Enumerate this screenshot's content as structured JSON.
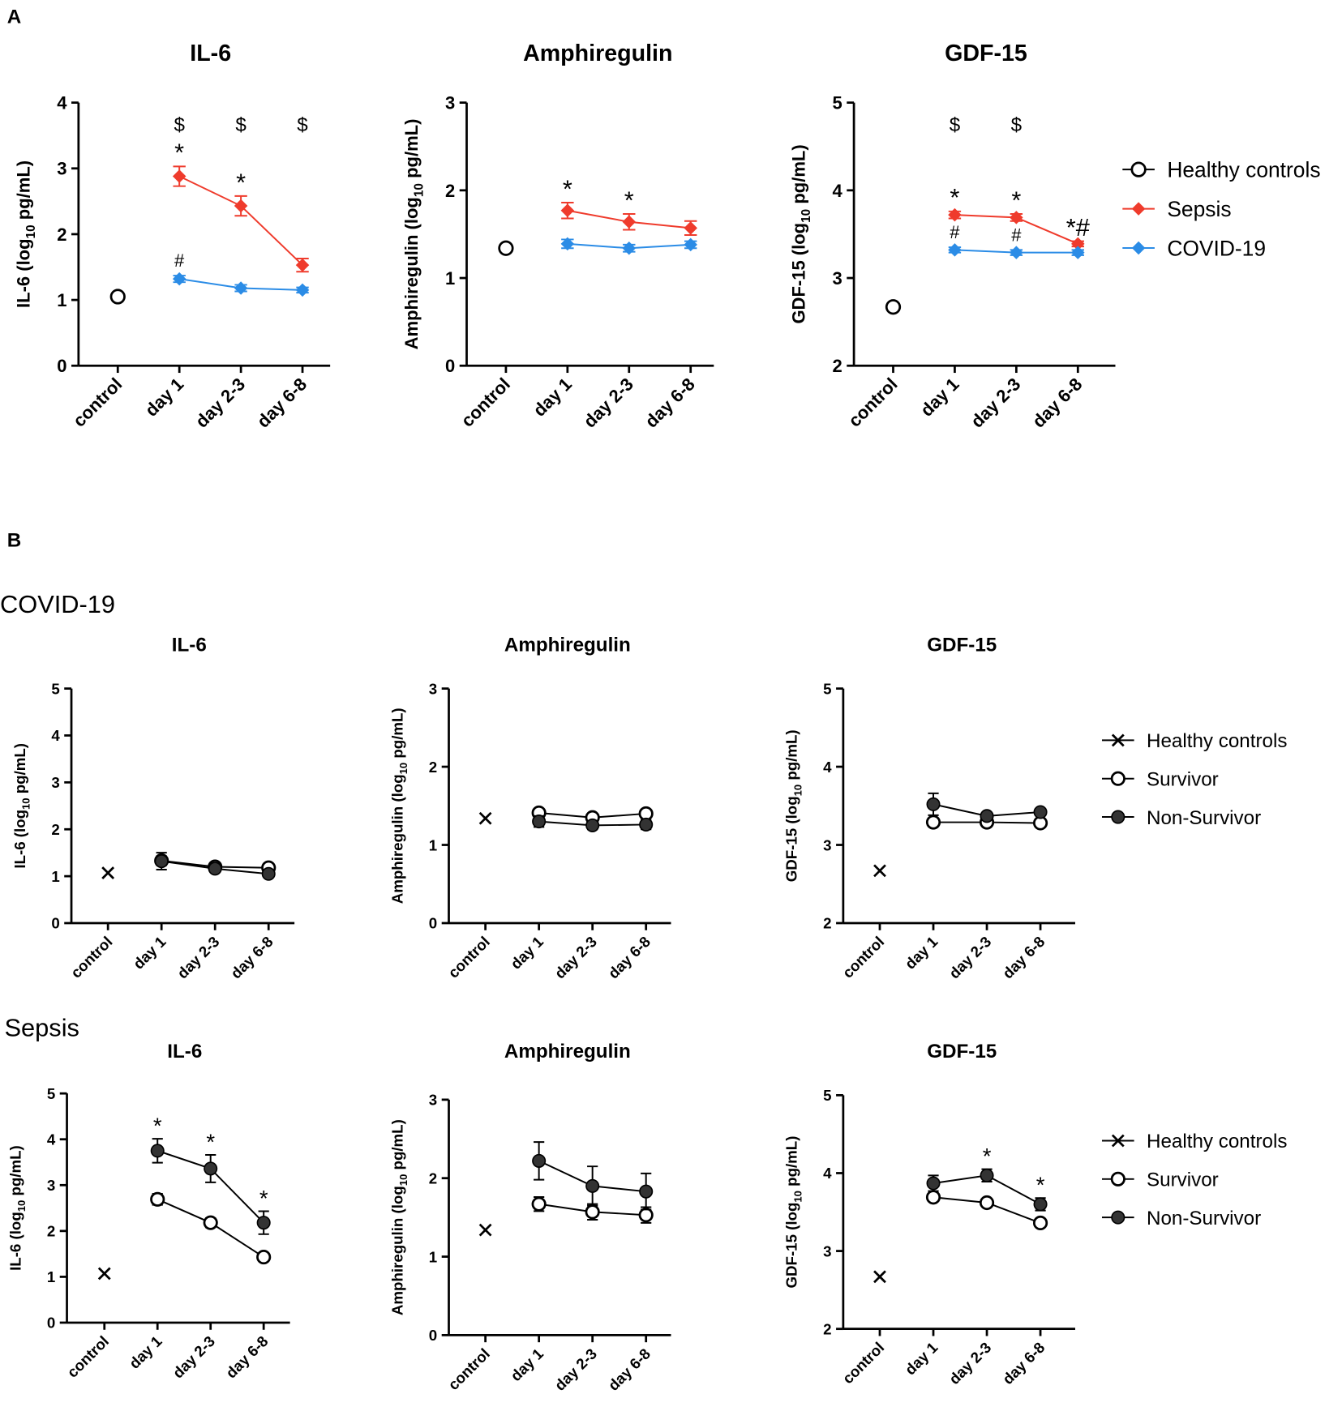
{
  "figure": {
    "panel_a": "A",
    "panel_b": "B",
    "row_1": "COVID-19",
    "row_2": "Sepsis"
  },
  "chart_data": [
    {
      "type": "line",
      "title": "IL-6",
      "ylabel": {
        "text": "IL-6 (log",
        "sub": "10",
        "unit": " pg/mL)"
      },
      "categories": [
        "control",
        "day 1",
        "day 2-3",
        "day 6-8"
      ],
      "ylim": [
        0,
        4
      ],
      "yticks": [
        0,
        1,
        2,
        3,
        4
      ],
      "top_labels": [
        null,
        "$",
        "$",
        "$"
      ],
      "series": [
        {
          "name": "Healthy controls",
          "color": "#000000",
          "marker": "circle-open",
          "values": [
            1.05,
            null,
            null,
            null
          ],
          "errors": [
            null,
            null,
            null,
            null
          ],
          "labels": [
            null,
            null,
            null,
            null
          ]
        },
        {
          "name": "Sepsis",
          "color": "#ef3b2c",
          "marker": "diamond",
          "values": [
            null,
            2.88,
            2.43,
            1.53
          ],
          "errors": [
            null,
            0.15,
            0.15,
            0.1
          ],
          "labels": [
            null,
            "*",
            "*",
            null
          ]
        },
        {
          "name": "COVID-19",
          "color": "#2b8ce6",
          "marker": "diamond",
          "values": [
            null,
            1.32,
            1.18,
            1.15
          ],
          "errors": [
            null,
            0.05,
            0.05,
            0.04
          ],
          "labels": [
            null,
            "#",
            null,
            null
          ]
        }
      ]
    },
    {
      "type": "line",
      "title": "Amphiregulin",
      "ylabel": {
        "text": "Amphiregulin (log",
        "sub": "10",
        "unit": " pg/mL)"
      },
      "categories": [
        "control",
        "day 1",
        "day 2-3",
        "day 6-8"
      ],
      "ylim": [
        0,
        3
      ],
      "yticks": [
        0,
        1,
        2,
        3
      ],
      "series": [
        {
          "name": "Healthy controls",
          "color": "#000000",
          "marker": "circle-open",
          "values": [
            1.34,
            null,
            null,
            null
          ],
          "errors": [
            null,
            null,
            null,
            null
          ],
          "labels": [
            null,
            null,
            null,
            null
          ]
        },
        {
          "name": "Sepsis",
          "color": "#ef3b2c",
          "marker": "diamond",
          "values": [
            null,
            1.77,
            1.64,
            1.57
          ],
          "errors": [
            null,
            0.09,
            0.09,
            0.08
          ],
          "labels": [
            null,
            "*",
            "*",
            null
          ]
        },
        {
          "name": "COVID-19",
          "color": "#2b8ce6",
          "marker": "diamond",
          "values": [
            null,
            1.39,
            1.34,
            1.38
          ],
          "errors": [
            null,
            0.05,
            0.04,
            0.04
          ],
          "labels": [
            null,
            null,
            null,
            null
          ]
        }
      ]
    },
    {
      "type": "line",
      "title": "GDF-15",
      "ylabel": {
        "text": "GDF-15 (log",
        "sub": "10",
        "unit": " pg/mL)"
      },
      "categories": [
        "control",
        "day 1",
        "day 2-3",
        "day 6-8"
      ],
      "ylim": [
        2,
        5
      ],
      "yticks": [
        2,
        3,
        4,
        5
      ],
      "legend": "right",
      "top_labels": [
        null,
        "$",
        "$",
        null
      ],
      "series": [
        {
          "name": "Healthy controls",
          "color": "#000000",
          "marker": "circle-open",
          "values": [
            2.67,
            null,
            null,
            null
          ],
          "errors": [
            null,
            null,
            null,
            null
          ],
          "labels": [
            null,
            null,
            null,
            null
          ]
        },
        {
          "name": "Sepsis",
          "color": "#ef3b2c",
          "marker": "diamond",
          "values": [
            null,
            3.72,
            3.69,
            3.39
          ],
          "errors": [
            null,
            0.04,
            0.04,
            0.03
          ],
          "labels": [
            null,
            "*",
            "*",
            "*#"
          ]
        },
        {
          "name": "COVID-19",
          "color": "#2b8ce6",
          "marker": "diamond",
          "values": [
            null,
            3.32,
            3.29,
            3.29
          ],
          "errors": [
            null,
            0.03,
            0.03,
            0.03
          ],
          "labels": [
            null,
            "#",
            "#",
            null
          ]
        }
      ]
    },
    {
      "type": "line",
      "title": "IL-6",
      "ylabel": {
        "text": "IL-6 (log",
        "sub": "10",
        "unit": " pg/mL)"
      },
      "categories": [
        "control",
        "day 1",
        "day 2-3",
        "day 6-8"
      ],
      "ylim": [
        0,
        5
      ],
      "yticks": [
        0,
        1,
        2,
        3,
        4,
        5
      ],
      "series": [
        {
          "name": "Healthy controls",
          "color": "#000000",
          "marker": "x",
          "values": [
            1.07,
            null,
            null,
            null
          ],
          "errors": [
            null,
            null,
            null,
            null
          ],
          "labels": [
            null,
            null,
            null,
            null
          ]
        },
        {
          "name": "Survivor",
          "color": "#000000",
          "marker": "circle-open",
          "values": [
            null,
            1.33,
            1.2,
            1.18
          ],
          "errors": [
            null,
            0.1,
            0.04,
            0.04
          ],
          "labels": [
            null,
            null,
            null,
            null
          ]
        },
        {
          "name": "Non-Survivor",
          "color": "#000000",
          "marker": "circle-filled",
          "values": [
            null,
            1.32,
            1.16,
            1.05
          ],
          "errors": [
            null,
            0.18,
            0.05,
            0.03
          ],
          "labels": [
            null,
            null,
            null,
            null
          ]
        }
      ]
    },
    {
      "type": "line",
      "title": "Amphiregulin",
      "ylabel": {
        "text": "Amphiregulin (log",
        "sub": "10",
        "unit": " pg/mL)"
      },
      "categories": [
        "control",
        "day 1",
        "day 2-3",
        "day 6-8"
      ],
      "ylim": [
        0,
        3
      ],
      "yticks": [
        0,
        1,
        2,
        3
      ],
      "series": [
        {
          "name": "Healthy controls",
          "color": "#000000",
          "marker": "x",
          "values": [
            1.34,
            null,
            null,
            null
          ],
          "errors": [
            null,
            null,
            null,
            null
          ],
          "labels": [
            null,
            null,
            null,
            null
          ]
        },
        {
          "name": "Survivor",
          "color": "#000000",
          "marker": "circle-open",
          "values": [
            null,
            1.41,
            1.35,
            1.4
          ],
          "errors": [
            null,
            0.04,
            0.03,
            0.03
          ],
          "labels": [
            null,
            null,
            null,
            null
          ]
        },
        {
          "name": "Non-Survivor",
          "color": "#000000",
          "marker": "circle-filled",
          "values": [
            null,
            1.3,
            1.25,
            1.26
          ],
          "errors": [
            null,
            0.07,
            0.05,
            0.06
          ],
          "labels": [
            null,
            null,
            null,
            null
          ]
        }
      ]
    },
    {
      "type": "line",
      "title": "GDF-15",
      "ylabel": {
        "text": "GDF-15 (log",
        "sub": "10",
        "unit": " pg/mL)"
      },
      "categories": [
        "control",
        "day 1",
        "day 2-3",
        "day 6-8"
      ],
      "ylim": [
        2,
        5
      ],
      "yticks": [
        2,
        3,
        4,
        5
      ],
      "legend": "right",
      "series": [
        {
          "name": "Healthy controls",
          "color": "#000000",
          "marker": "x",
          "values": [
            2.67,
            null,
            null,
            null
          ],
          "errors": [
            null,
            null,
            null,
            null
          ],
          "labels": [
            null,
            null,
            null,
            null
          ]
        },
        {
          "name": "Survivor",
          "color": "#000000",
          "marker": "circle-open",
          "values": [
            null,
            3.29,
            3.29,
            3.28
          ],
          "errors": [
            null,
            0.02,
            0.02,
            0.02
          ],
          "labels": [
            null,
            null,
            null,
            null
          ]
        },
        {
          "name": "Non-Survivor",
          "color": "#000000",
          "marker": "circle-filled",
          "values": [
            null,
            3.52,
            3.37,
            3.42
          ],
          "errors": [
            null,
            0.14,
            0.04,
            0.03
          ],
          "labels": [
            null,
            null,
            null,
            null
          ]
        }
      ]
    },
    {
      "type": "line",
      "title": "IL-6",
      "ylabel": {
        "text": "IL-6 (log",
        "sub": "10",
        "unit": " pg/mL)"
      },
      "categories": [
        "control",
        "day 1",
        "day 2-3",
        "day 6-8"
      ],
      "ylim": [
        0,
        5
      ],
      "yticks": [
        0,
        1,
        2,
        3,
        4,
        5
      ],
      "series": [
        {
          "name": "Healthy controls",
          "color": "#000000",
          "marker": "x",
          "values": [
            1.07,
            null,
            null,
            null
          ],
          "errors": [
            null,
            null,
            null,
            null
          ],
          "labels": [
            null,
            null,
            null,
            null
          ]
        },
        {
          "name": "Survivor",
          "color": "#000000",
          "marker": "circle-open",
          "values": [
            null,
            2.69,
            2.18,
            1.43
          ],
          "errors": [
            null,
            0.12,
            0.1,
            0.03
          ],
          "labels": [
            null,
            null,
            null,
            null
          ]
        },
        {
          "name": "Non-Survivor",
          "color": "#000000",
          "marker": "circle-filled",
          "values": [
            null,
            3.75,
            3.36,
            2.18
          ],
          "errors": [
            null,
            0.26,
            0.3,
            0.25
          ],
          "labels": [
            null,
            "*",
            "*",
            "*"
          ]
        }
      ]
    },
    {
      "type": "line",
      "title": "Amphiregulin",
      "ylabel": {
        "text": "Amphiregulin (log",
        "sub": "10",
        "unit": " pg/mL)"
      },
      "categories": [
        "control",
        "day 1",
        "day 2-3",
        "day 6-8"
      ],
      "ylim": [
        0,
        3
      ],
      "yticks": [
        0,
        1,
        2,
        3
      ],
      "series": [
        {
          "name": "Healthy controls",
          "color": "#000000",
          "marker": "x",
          "values": [
            1.34,
            null,
            null,
            null
          ],
          "errors": [
            null,
            null,
            null,
            null
          ],
          "labels": [
            null,
            null,
            null,
            null
          ]
        },
        {
          "name": "Survivor",
          "color": "#000000",
          "marker": "circle-open",
          "values": [
            null,
            1.67,
            1.57,
            1.53
          ],
          "errors": [
            null,
            0.09,
            0.1,
            0.1
          ],
          "labels": [
            null,
            null,
            null,
            null
          ]
        },
        {
          "name": "Non-Survivor",
          "color": "#000000",
          "marker": "circle-filled",
          "values": [
            null,
            2.22,
            1.9,
            1.83
          ],
          "errors": [
            null,
            0.24,
            0.25,
            0.23
          ],
          "labels": [
            null,
            null,
            null,
            null
          ]
        }
      ]
    },
    {
      "type": "line",
      "title": "GDF-15",
      "ylabel": {
        "text": "GDF-15 (log",
        "sub": "10",
        "unit": " pg/mL)"
      },
      "categories": [
        "control",
        "day 1",
        "day 2-3",
        "day 6-8"
      ],
      "ylim": [
        2,
        5
      ],
      "yticks": [
        2,
        3,
        4,
        5
      ],
      "legend": "right",
      "series": [
        {
          "name": "Healthy controls",
          "color": "#000000",
          "marker": "x",
          "values": [
            2.67,
            null,
            null,
            null
          ],
          "errors": [
            null,
            null,
            null,
            null
          ],
          "labels": [
            null,
            null,
            null,
            null
          ]
        },
        {
          "name": "Survivor",
          "color": "#000000",
          "marker": "circle-open",
          "values": [
            null,
            3.69,
            3.62,
            3.36
          ],
          "errors": [
            null,
            0.03,
            0.03,
            0.03
          ],
          "labels": [
            null,
            null,
            null,
            null
          ]
        },
        {
          "name": "Non-Survivor",
          "color": "#000000",
          "marker": "circle-filled",
          "values": [
            null,
            3.87,
            3.97,
            3.6
          ],
          "errors": [
            null,
            0.1,
            0.08,
            0.08
          ],
          "labels": [
            null,
            null,
            "*",
            "*"
          ]
        }
      ]
    }
  ]
}
